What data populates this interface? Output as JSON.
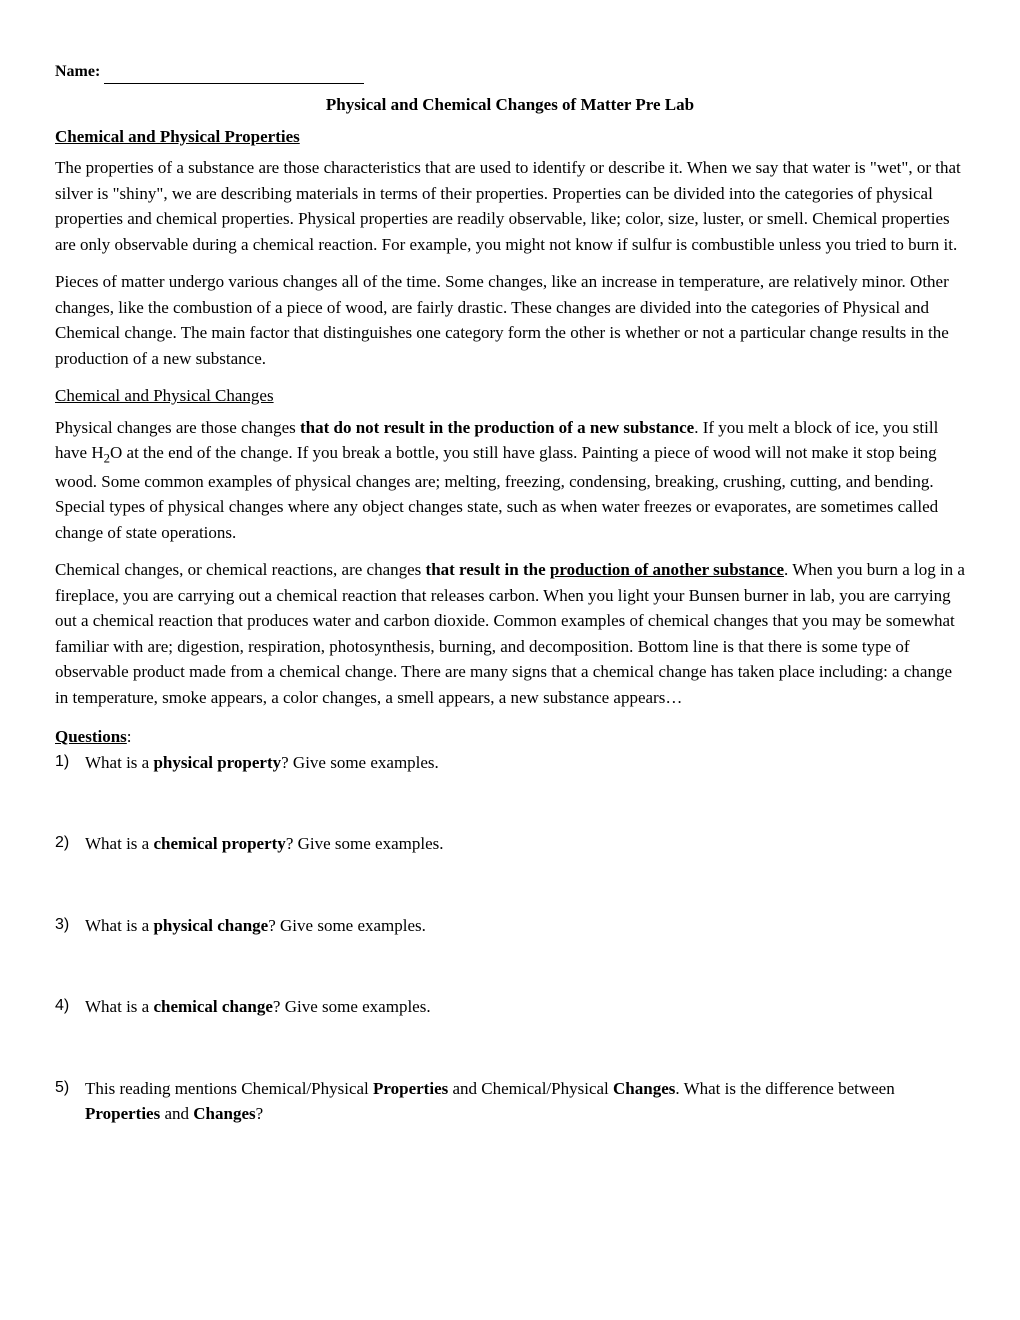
{
  "name_label": "Name:",
  "title": "Physical and Chemical Changes of Matter Pre Lab",
  "heading1": "Chemical and Physical Properties",
  "para1": "The properties of a substance are those characteristics that are used to identify or describe it.  When we say that water is \"wet\", or that silver is \"shiny\", we are describing materials in terms of their properties.  Properties can be divided into the categories of physical properties and chemical properties.  Physical properties are readily observable, like; color, size, luster, or smell.   Chemical properties are only observable during a chemical reaction.  For example, you might not know if sulfur is combustible unless you tried to burn it.",
  "para2": "Pieces of matter undergo various changes all of the time.  Some changes, like an increase in temperature, are relatively minor.  Other changes, like the combustion of a piece of wood, are fairly drastic.   These  changes are divided into the categories of Physical and Chemical change.   The main factor that distinguishes one category form the other is whether or not a particular change results in the production of a new substance.",
  "heading2": "Chemical and Physical Changes",
  "para3_a": "Physical changes are those changes ",
  "para3_bold": "that do not result in the production of a new substance",
  "para3_b": ".  If you melt a block of ice, you still have H",
  "para3_sub": "2",
  "para3_c": "O at the end of the change.  If you break a bottle, you still have glass.  Painting a piece of wood will not make it stop being wood.  Some common examples of physical changes are; melting, freezing, condensing, breaking, crushing, cutting, and bending.  Special types of physical changes where any object changes state, such as when water freezes or evaporates, are sometimes called change of state operations.",
  "para4_a": "Chemical changes, or chemical reactions, are changes ",
  "para4_bold1": "that result in the ",
  "para4_boldU": "production of another substance",
  "para4_b": ".  When you burn a log in a fireplace, you are carrying out a chemical reaction that releases carbon.  When you light your Bunsen burner in lab, you are carrying out a chemical reaction that produces water and carbon dioxide.  Common examples of chemical changes that you may be somewhat familiar with are; digestion, respiration, photosynthesis, burning, and decomposition. Bottom line is that there is some type of observable product made from a chemical change.  There are many signs that a chemical change has taken place including: a change in temperature, smoke appears, a color changes, a smell appears, a new substance appears…",
  "questions_label": "Questions",
  "questions_colon": ":",
  "q1_a": "What is a ",
  "q1_bold": "physical property",
  "q1_b": "? Give some examples.",
  "q2_a": "What is a ",
  "q2_bold": "chemical property",
  "q2_b": "? Give some examples.",
  "q3_a": "What is a ",
  "q3_bold": "physical change",
  "q3_b": "? Give some examples.",
  "q4_a": "What is a ",
  "q4_bold": "chemical change",
  "q4_b": "? Give some examples.",
  "q5_a": "This reading mentions Chemical/Physical ",
  "q5_bold1": "Properties",
  "q5_b": " and Chemical/Physical ",
  "q5_bold2": "Changes",
  "q5_c": ". What is the difference between ",
  "q5_bold3": "Properties",
  "q5_d": " and ",
  "q5_bold4": "Changes",
  "q5_e": "?"
}
